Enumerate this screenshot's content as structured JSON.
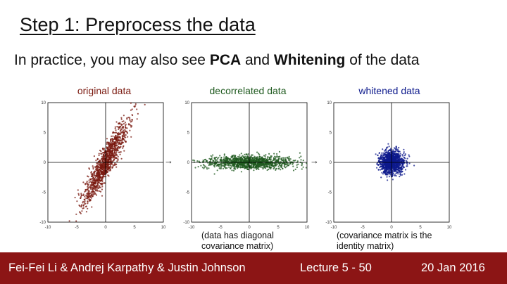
{
  "slide": {
    "title": "Step 1: Preprocess the data",
    "subtitle": {
      "part1": "In practice, you may also see ",
      "pca": "PCA",
      "part2": " and ",
      "whitening": "Whitening",
      "part3": " of the data"
    },
    "arrow": "→",
    "captions": {
      "decorrelated": [
        "(data has diagonal",
        "covariance matrix)"
      ],
      "whitened": [
        "(covariance matrix is the",
        "identity matrix)"
      ]
    },
    "footer": {
      "authors": "Fei-Fei Li & Andrej Karpathy & Justin Johnson",
      "lecture": "Lecture 5 - 50",
      "date": "20 Jan 2016"
    },
    "colors": {
      "footer_bg": "#8c1515"
    }
  },
  "chart_data": [
    {
      "type": "scatter",
      "title": "original data",
      "color": "#7a1a10",
      "xlim": [
        -10,
        10
      ],
      "ylim": [
        -10,
        10
      ],
      "xticks": [
        "-10",
        "-5",
        "0",
        "5",
        "10"
      ],
      "yticks": [
        "10",
        "5",
        "0",
        "-5",
        "-10"
      ],
      "distribution": {
        "std_major": 4.0,
        "std_minor": 0.7,
        "angle_deg": 62,
        "n": 1200
      }
    },
    {
      "type": "scatter",
      "title": "decorrelated data",
      "color": "#1f5a1f",
      "xlim": [
        -10,
        10
      ],
      "ylim": [
        -10,
        10
      ],
      "xticks": [
        "-10",
        "-5",
        "0",
        "5",
        "10"
      ],
      "yticks": [
        "10",
        "5",
        "0",
        "-5",
        "-10"
      ],
      "distribution": {
        "std_major": 3.8,
        "std_minor": 0.55,
        "angle_deg": 0,
        "n": 1200
      }
    },
    {
      "type": "scatter",
      "title": "whitened data",
      "color": "#0d1a8c",
      "xlim": [
        -10,
        10
      ],
      "ylim": [
        -10,
        10
      ],
      "xticks": [
        "-10",
        "-5",
        "0",
        "5",
        "10"
      ],
      "yticks": [
        "10",
        "5",
        "0",
        "-5",
        "-10"
      ],
      "distribution": {
        "std_major": 1.0,
        "std_minor": 1.0,
        "angle_deg": 0,
        "n": 1200
      }
    }
  ]
}
